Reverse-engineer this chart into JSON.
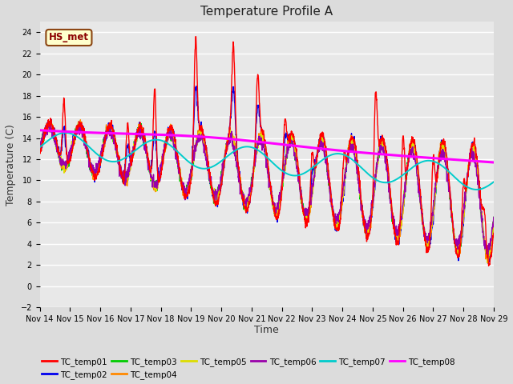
{
  "title": "Temperature Profile A",
  "xlabel": "Time",
  "ylabel": "Temperature (C)",
  "ylim": [
    -2,
    25
  ],
  "yticks": [
    -2,
    0,
    2,
    4,
    6,
    8,
    10,
    12,
    14,
    16,
    18,
    20,
    22,
    24
  ],
  "xlim": [
    0,
    15
  ],
  "xtick_labels": [
    "Nov 14",
    "Nov 15",
    "Nov 16",
    "Nov 17",
    "Nov 18",
    "Nov 19",
    "Nov 20",
    "Nov 21",
    "Nov 22",
    "Nov 23",
    "Nov 24",
    "Nov 25",
    "Nov 26",
    "Nov 27",
    "Nov 28",
    "Nov 29"
  ],
  "legend_entries": [
    "TC_temp01",
    "TC_temp02",
    "TC_temp03",
    "TC_temp04",
    "TC_temp05",
    "TC_temp06",
    "TC_temp07",
    "TC_temp08"
  ],
  "colors": {
    "TC_temp01": "#FF0000",
    "TC_temp02": "#0000EE",
    "TC_temp03": "#00CC00",
    "TC_temp04": "#FF8800",
    "TC_temp05": "#DDDD00",
    "TC_temp06": "#9900AA",
    "TC_temp07": "#00CCCC",
    "TC_temp08": "#FF00FF"
  },
  "annotation_text": "HS_met",
  "bg_color": "#DCDCDC",
  "plot_bg": "#E8E8E8",
  "title_fontsize": 11,
  "tick_fontsize": 7,
  "ylabel_fontsize": 9,
  "xlabel_fontsize": 9
}
